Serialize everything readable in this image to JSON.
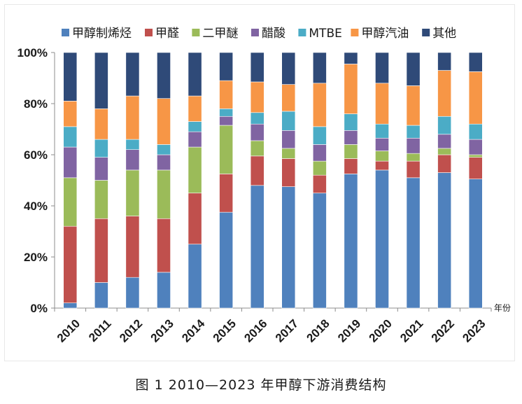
{
  "figure": {
    "caption": "图 1 2010—2023 年甲醇下游消费结构"
  },
  "chart_data": {
    "type": "bar",
    "stacked": true,
    "percent_stacked": true,
    "categories": [
      "2010",
      "2011",
      "2012",
      "2013",
      "2014",
      "2015",
      "2016",
      "2017",
      "2018",
      "2019",
      "2020",
      "2021",
      "2022",
      "2023"
    ],
    "xlabel": "年份",
    "ylabel": "",
    "ylim": [
      0,
      100
    ],
    "y_ticks": [
      "0%",
      "20%",
      "40%",
      "60%",
      "80%",
      "100%"
    ],
    "grid": false,
    "legend_position": "top",
    "series": [
      {
        "name": "甲醇制烯烃",
        "color": "#4F81BD",
        "values": [
          2,
          10,
          12,
          14,
          25,
          37.5,
          48,
          47.5,
          45,
          52.5,
          54,
          51,
          53,
          50.5
        ]
      },
      {
        "name": "甲醛",
        "color": "#C0504D",
        "values": [
          30,
          25,
          24,
          21,
          20,
          15,
          11.5,
          11,
          7,
          6,
          3.5,
          6.5,
          7,
          8.5
        ]
      },
      {
        "name": "二甲醚",
        "color": "#9BBB59",
        "values": [
          19,
          15,
          18,
          19,
          18,
          19,
          6,
          4,
          5.5,
          5.5,
          4,
          3,
          2.5,
          1
        ]
      },
      {
        "name": "醋酸",
        "color": "#8064A2",
        "values": [
          12,
          9,
          8,
          6,
          6,
          3.5,
          6.5,
          7,
          6.5,
          5.5,
          5,
          6,
          5.5,
          6
        ]
      },
      {
        "name": "MTBE",
        "color": "#4BACC6",
        "values": [
          8,
          7,
          4,
          4,
          4,
          3,
          4.5,
          7.5,
          7,
          6.5,
          5.5,
          5,
          7,
          6
        ]
      },
      {
        "name": "甲醇汽油",
        "color": "#F79646",
        "values": [
          10,
          12,
          17,
          18,
          10,
          11,
          12,
          10.5,
          17,
          19.5,
          16,
          15.5,
          18,
          20.5
        ]
      },
      {
        "name": "其他",
        "color": "#2F4A78",
        "values": [
          19,
          22,
          17,
          18,
          17,
          11,
          11.5,
          12.5,
          12,
          4.5,
          12,
          13,
          7,
          7.5
        ]
      }
    ]
  }
}
